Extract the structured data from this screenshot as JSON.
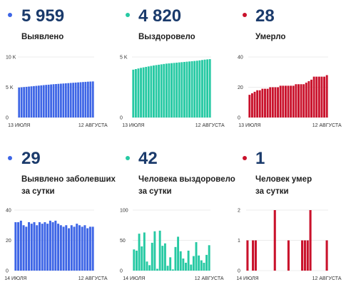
{
  "colors": {
    "blue": "#3d65e6",
    "teal": "#26c9a3",
    "red": "#c9112b",
    "number": "#1a3a6b",
    "grid": "#d9d9d9"
  },
  "panels": [
    {
      "value": "5 959",
      "label_lines": [
        "Выявлено"
      ],
      "color": "#3d65e6",
      "chart_data": {
        "type": "bar",
        "title": "Выявлено",
        "y_ticks": [
          "10 K",
          "5 K",
          "0"
        ],
        "ylim": [
          0,
          10000
        ],
        "x_labels": [
          "13 ИЮЛЯ",
          "12 АВГУСТА"
        ],
        "x_label_positions": [
          0,
          30
        ],
        "values": [
          4950,
          4990,
          5030,
          5070,
          5110,
          5150,
          5190,
          5230,
          5270,
          5310,
          5350,
          5390,
          5420,
          5460,
          5500,
          5530,
          5560,
          5590,
          5620,
          5650,
          5680,
          5710,
          5740,
          5770,
          5800,
          5830,
          5860,
          5890,
          5920,
          5940,
          5959
        ]
      }
    },
    {
      "value": "4 820",
      "label_lines": [
        "Выздоровело"
      ],
      "color": "#26c9a3",
      "chart_data": {
        "type": "bar",
        "title": "Выздоровело",
        "y_ticks": [
          "5 K",
          "0"
        ],
        "ylim": [
          0,
          5000
        ],
        "x_labels": [
          "13 ИЮЛЯ",
          "12 АВГУСТА"
        ],
        "x_label_positions": [
          0,
          30
        ],
        "values": [
          3950,
          4000,
          4050,
          4100,
          4140,
          4180,
          4220,
          4260,
          4300,
          4330,
          4360,
          4390,
          4420,
          4450,
          4470,
          4490,
          4510,
          4530,
          4550,
          4570,
          4590,
          4610,
          4630,
          4650,
          4670,
          4690,
          4720,
          4750,
          4780,
          4800,
          4820
        ]
      }
    },
    {
      "value": "28",
      "label_lines": [
        "Умерло"
      ],
      "color": "#c9112b",
      "chart_data": {
        "type": "bar",
        "title": "Умерло",
        "y_ticks": [
          "40",
          "20",
          "0"
        ],
        "ylim": [
          0,
          40
        ],
        "x_labels": [
          "13 ИЮЛЯ",
          "12 АВГУСТА"
        ],
        "x_label_positions": [
          0,
          30
        ],
        "values": [
          15,
          16,
          17,
          18,
          18,
          19,
          19,
          19,
          20,
          20,
          20,
          20,
          21,
          21,
          21,
          21,
          21,
          21,
          22,
          22,
          22,
          22,
          23,
          24,
          25,
          27,
          27,
          27,
          27,
          27,
          28
        ]
      }
    },
    {
      "value": "29",
      "label_lines": [
        "Выявлено заболевших",
        "за сутки"
      ],
      "color": "#3d65e6",
      "chart_data": {
        "type": "bar",
        "title": "Выявлено заболевших за сутки",
        "y_ticks": [
          "40",
          "20",
          "0"
        ],
        "ylim": [
          0,
          40
        ],
        "x_labels": [
          "14 ИЮЛЯ",
          "12 АВГУСТА"
        ],
        "x_label_positions": [
          0,
          29
        ],
        "values": [
          32,
          32,
          33,
          30,
          29,
          32,
          31,
          32,
          30,
          32,
          31,
          32,
          31,
          33,
          32,
          33,
          31,
          30,
          29,
          30,
          28,
          30,
          29,
          31,
          30,
          29,
          30,
          28,
          29,
          29
        ]
      }
    },
    {
      "value": "42",
      "label_lines": [
        "Человека выздоровело",
        "за сутки"
      ],
      "color": "#26c9a3",
      "chart_data": {
        "type": "bar",
        "title": "Человека выздоровело за сутки",
        "y_ticks": [
          "100",
          "50",
          "0"
        ],
        "ylim": [
          0,
          100
        ],
        "x_labels": [
          "14 ИЮЛЯ",
          "12 АВГУСТА"
        ],
        "x_label_positions": [
          0,
          29
        ],
        "values": [
          35,
          33,
          61,
          40,
          63,
          15,
          9,
          46,
          65,
          3,
          66,
          41,
          45,
          8,
          22,
          2,
          39,
          56,
          32,
          20,
          13,
          33,
          10,
          24,
          47,
          25,
          17,
          13,
          26,
          42
        ]
      }
    },
    {
      "value": "1",
      "label_lines": [
        "Человек умер",
        "за сутки"
      ],
      "color": "#c9112b",
      "chart_data": {
        "type": "bar",
        "title": "Человек умер за сутки",
        "y_ticks": [
          "2",
          "1",
          "0"
        ],
        "ylim": [
          0,
          2
        ],
        "x_labels": [
          "14 ИЮЛЯ",
          "12 АВГУСТА"
        ],
        "x_label_positions": [
          0,
          29
        ],
        "values": [
          1,
          0,
          1,
          1,
          0,
          0,
          0,
          0,
          0,
          0,
          2,
          0,
          0,
          0,
          0,
          1,
          0,
          0,
          0,
          0,
          1,
          1,
          1,
          2,
          0,
          0,
          0,
          0,
          0,
          1
        ]
      }
    }
  ]
}
